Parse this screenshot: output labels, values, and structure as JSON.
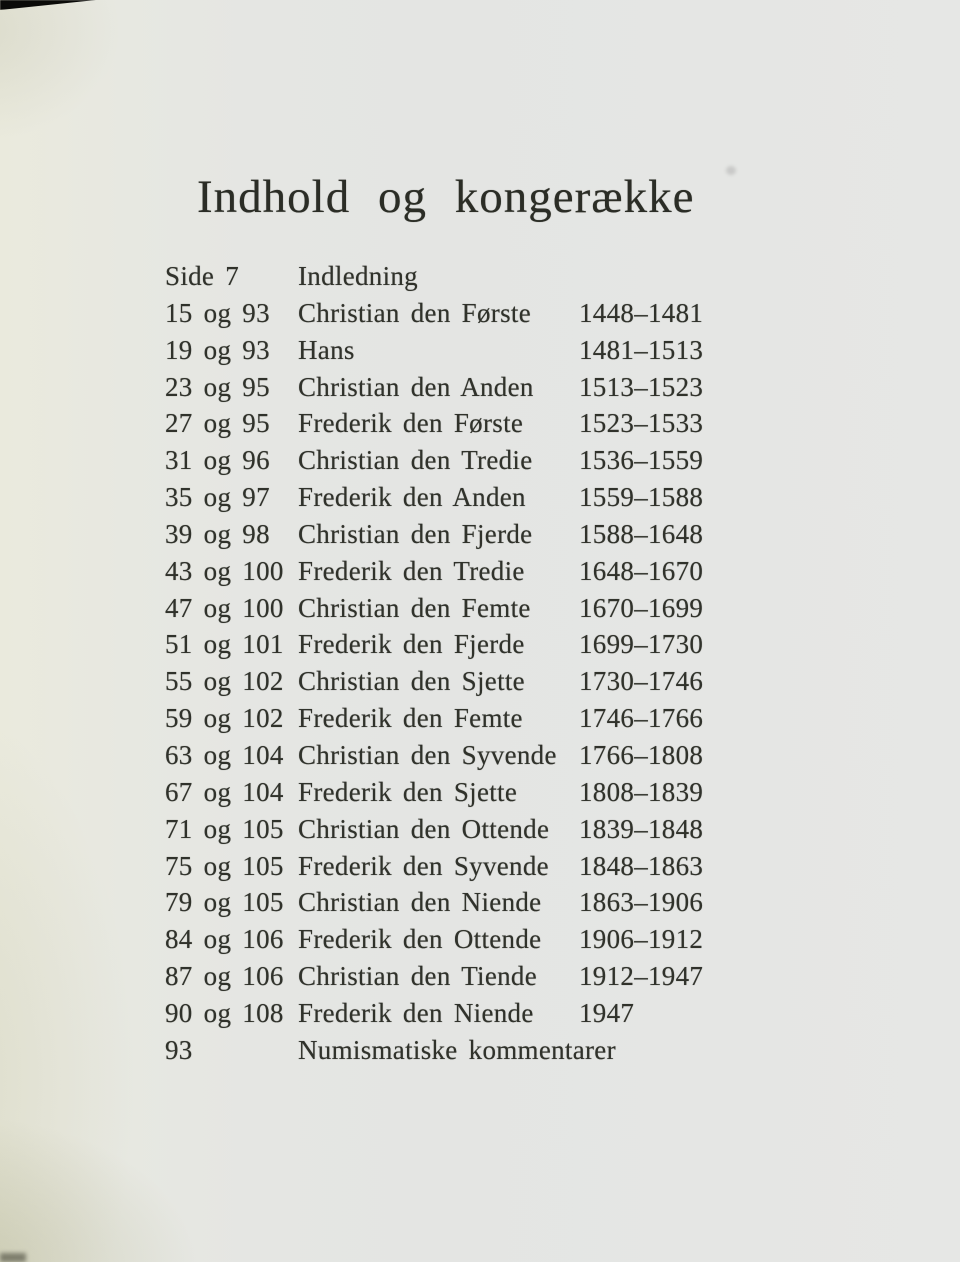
{
  "page": {
    "title": "Indhold og kongerække"
  },
  "toc": {
    "rows": [
      {
        "pages": "Side 7",
        "name": "Indledning",
        "years": ""
      },
      {
        "pages": "15 og 93",
        "name": "Christian den Første",
        "years": "1448–1481"
      },
      {
        "pages": "19 og 93",
        "name": "Hans",
        "years": "1481–1513"
      },
      {
        "pages": "23 og 95",
        "name": "Christian den Anden",
        "years": "1513–1523"
      },
      {
        "pages": "27 og 95",
        "name": "Frederik den Første",
        "years": "1523–1533"
      },
      {
        "pages": "31 og 96",
        "name": "Christian den Tredie",
        "years": "1536–1559"
      },
      {
        "pages": "35 og 97",
        "name": "Frederik den Anden",
        "years": "1559–1588"
      },
      {
        "pages": "39 og 98",
        "name": "Christian den Fjerde",
        "years": "1588–1648"
      },
      {
        "pages": "43 og 100",
        "name": "Frederik den Tredie",
        "years": "1648–1670"
      },
      {
        "pages": "47 og 100",
        "name": "Christian den Femte",
        "years": "1670–1699"
      },
      {
        "pages": "51 og 101",
        "name": "Frederik den Fjerde",
        "years": "1699–1730"
      },
      {
        "pages": "55 og 102",
        "name": "Christian den Sjette",
        "years": "1730–1746"
      },
      {
        "pages": "59 og 102",
        "name": "Frederik den Femte",
        "years": "1746–1766"
      },
      {
        "pages": "63 og 104",
        "name": "Christian den Syvende",
        "years": "1766–1808"
      },
      {
        "pages": "67 og 104",
        "name": "Frederik den Sjette",
        "years": "1808–1839"
      },
      {
        "pages": "71 og 105",
        "name": "Christian den Ottende",
        "years": "1839–1848"
      },
      {
        "pages": "75 og 105",
        "name": "Frederik den Syvende",
        "years": "1848–1863"
      },
      {
        "pages": "79 og 105",
        "name": "Christian den Niende",
        "years": "1863–1906"
      },
      {
        "pages": "84 og 106",
        "name": "Frederik den Ottende",
        "years": "1906–1912"
      },
      {
        "pages": "87 og 106",
        "name": "Christian den Tiende",
        "years": "1912–1947"
      },
      {
        "pages": "90 og 108",
        "name": "Frederik den Niende",
        "years": "1947"
      },
      {
        "pages": "93",
        "name": "Numismatiske kommentarer",
        "years": ""
      }
    ]
  },
  "colors": {
    "paper_left": "#eaeadd",
    "paper_right": "#e5e6e4",
    "ink": "#30322b",
    "scan_edge": "#0b0b09"
  }
}
